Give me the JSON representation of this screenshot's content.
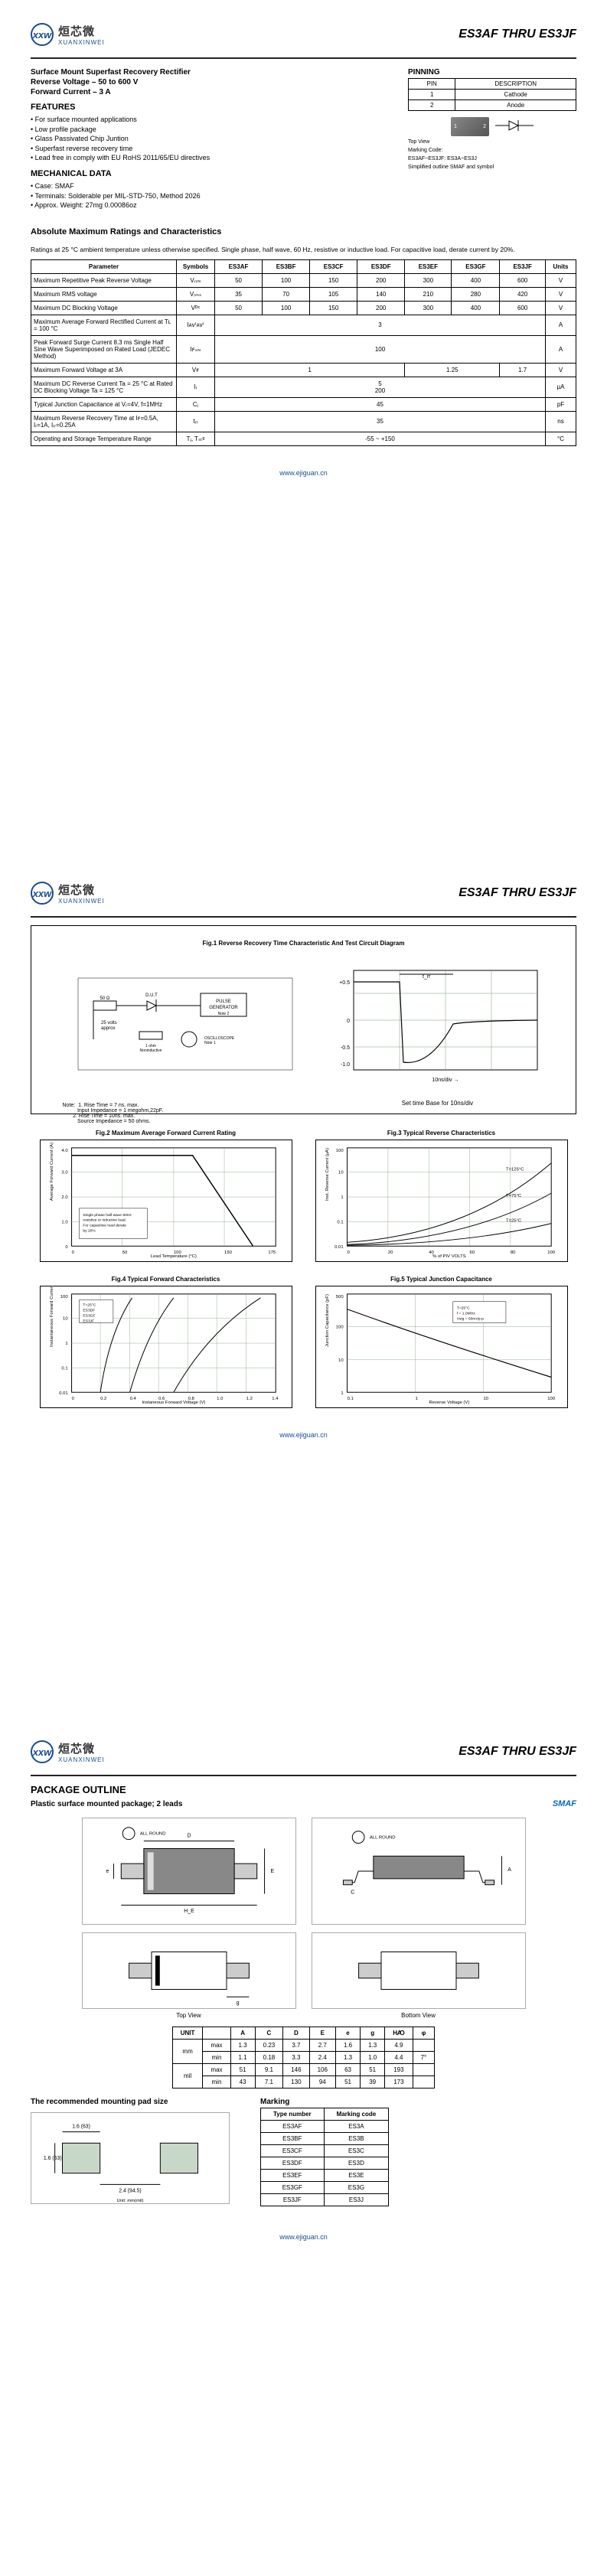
{
  "logo": {
    "cn": "烜芯微",
    "en": "XUANXINWEI",
    "icon": "xxw"
  },
  "part_range": "ES3AF THRU ES3JF",
  "page1": {
    "title1": "Surface Mount Superfast Recovery Rectifier",
    "title2": "Reverse Voltage – 50 to 600 V",
    "title3": "Forward Current – 3 A",
    "features_title": "FEATURES",
    "features": [
      "For surface mounted applications",
      "Low profile package",
      "Glass Passivated Chip Juntion",
      "Superfast reverse recovery time",
      "Lead free in comply with EU RoHS 2011/65/EU directives"
    ],
    "mech_title": "MECHANICAL DATA",
    "mech": [
      "Case: SMAF",
      "Terminals: Solderable per MIL-STD-750, Method 2026",
      "Approx. Weight: 27mg  0.00086oz"
    ],
    "pinning_title": "PINNING",
    "pinning_headers": [
      "PIN",
      "DESCRIPTION"
    ],
    "pinning_rows": [
      [
        "1",
        "Cathode"
      ],
      [
        "2",
        "Anode"
      ]
    ],
    "topview_label": "Top View",
    "marking_label": "Marking Code:",
    "marking_text": "ES3AF~ES3JF: ES3A~ES3J",
    "marking_text2": "Simplified outline SMAF and symbol",
    "ratings_title": "Absolute Maximum Ratings and Characteristics",
    "ratings_intro": "Ratings at 25 °C ambient temperature unless otherwise specified. Single phase, half wave, 60 Hz, resistive or inductive load. For capacitive load, derate current by 20%.",
    "table": {
      "headers": [
        "Parameter",
        "Symbols",
        "ES3AF",
        "ES3BF",
        "ES3CF",
        "ES3DF",
        "ES3EF",
        "ES3GF",
        "ES3JF",
        "Units"
      ],
      "rows": [
        {
          "p": "Maximum Repetitive Peak Reverse Voltage",
          "s": "Vᵣᵣₘ",
          "v": [
            "50",
            "100",
            "150",
            "200",
            "300",
            "400",
            "600"
          ],
          "u": "V"
        },
        {
          "p": "Maximum RMS voltage",
          "s": "Vᵣₘₛ",
          "v": [
            "35",
            "70",
            "105",
            "140",
            "210",
            "280",
            "420"
          ],
          "u": "V"
        },
        {
          "p": "Maximum DC Blocking Voltage",
          "s": "Vᴰᶜ",
          "v": [
            "50",
            "100",
            "150",
            "200",
            "300",
            "400",
            "600"
          ],
          "u": "V"
        },
        {
          "p": "Maximum Average Forward Rectified Current at Tʟ = 100 °C",
          "s": "Iᴀᴠ⁽ᴀᴠ⁾",
          "span": "3",
          "u": "A"
        },
        {
          "p": "Peak Forward Surge Current 8.3 ms Single Half Sine Wave Superimposed on Rated Load (JEDEC Method)",
          "s": "Iꜰₛₘ",
          "span": "100",
          "u": "A"
        },
        {
          "p": "Maximum Forward Voltage at 3A",
          "s": "Vꜰ",
          "v4": [
            "1",
            "1.25",
            "1.7"
          ],
          "u": "V"
        },
        {
          "p": "Maximum DC Reverse Current    Ta = 25 °C\nat Rated DC Blocking Voltage    Ta = 125 °C",
          "s": "Iᵣ",
          "span2": [
            "5",
            "200"
          ],
          "u": "µA"
        },
        {
          "p": "Typical Junction Capacitance at Vᵣ=4V, f=1MHz",
          "s": "Cⱼ",
          "span": "45",
          "u": "pF"
        },
        {
          "p": "Maximum Reverse Recovery Time at Iꜰ=0.5A, Iᵣ=1A, Iᵣᵣ=0.25A",
          "s": "tᵣᵣ",
          "span": "35",
          "u": "ns"
        },
        {
          "p": "Operating and Storage Temperature Range",
          "s": "Tⱼ, Tₛₜᵍ",
          "span": "-55 ~ +150",
          "u": "°C"
        }
      ]
    }
  },
  "page2": {
    "fig1_title": "Fig.1 Reverse Recovery Time Characteristic And Test Circuit Diagram",
    "fig1_note": "Note:  1. Rise Time = 7 ns. max.\n          Input Impedance = 1 megohm,22pF.\n       2. Rise Time = 10ns. max.\n          Source Impedance = 50 ohms.",
    "fig1_settime": "Set time Base for 10ns/div",
    "fig2_title": "Fig.2 Maximum Average Forward Current Rating",
    "fig3_title": "Fig.3 Typical Reverse Characteristics",
    "fig4_title": "Fig.4 Typical Forward Characteristics",
    "fig5_title": "Fig.5 Typical Junction Capacitance",
    "chart_colors": {
      "grid": "#7a9e7a",
      "bg": "#ffffff",
      "line": "#222"
    }
  },
  "page3": {
    "pkg_title": "PACKAGE OUTLINE",
    "pkg_sub": "Plastic surface mounted package; 2 leads",
    "smaf": "SMAF",
    "topview": "Top View",
    "bottomview": "Bottom View",
    "dim_headers": [
      "UNIT",
      "",
      "A",
      "C",
      "D",
      "E",
      "e",
      "g",
      "HꜴ",
      "φ"
    ],
    "dim_rows": [
      [
        "mm",
        "max",
        "1.3",
        "0.23",
        "3.7",
        "2.7",
        "1.6",
        "1.3",
        "4.9",
        ""
      ],
      [
        "",
        "min",
        "1.1",
        "0.18",
        "3.3",
        "2.4",
        "1.3",
        "1.0",
        "4.4",
        "7°"
      ],
      [
        "mil",
        "max",
        "51",
        "9.1",
        "146",
        "106",
        "63",
        "51",
        "193",
        ""
      ],
      [
        "",
        "min",
        "43",
        "7.1",
        "130",
        "94",
        "51",
        "39",
        "173",
        ""
      ]
    ],
    "pad_title": "The recommended mounting pad size",
    "marking_title": "Marking",
    "marking_headers": [
      "Type number",
      "Marking code"
    ],
    "marking_rows": [
      [
        "ES3AF",
        "ES3A"
      ],
      [
        "ES3BF",
        "ES3B"
      ],
      [
        "ES3CF",
        "ES3C"
      ],
      [
        "ES3DF",
        "ES3D"
      ],
      [
        "ES3EF",
        "ES3E"
      ],
      [
        "ES3GF",
        "ES3G"
      ],
      [
        "ES3JF",
        "ES3J"
      ]
    ]
  },
  "footer": "www.ejiguan.cn"
}
